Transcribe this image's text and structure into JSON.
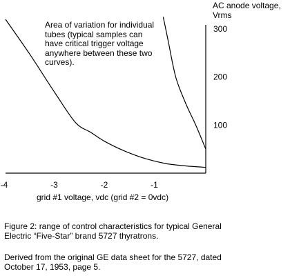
{
  "chart_data": {
    "type": "line",
    "title": "",
    "xlabel": "grid #1 voltage, vdc (grid #2 = 0vdc)",
    "ylabel_lines": [
      "AC anode voltage,",
      "Vrms"
    ],
    "xlim": [
      -4,
      0
    ],
    "ylim": [
      0,
      320
    ],
    "x_ticks": [
      "-4",
      "-3",
      "-2",
      "-1"
    ],
    "x_tick_values": [
      -4,
      -3,
      -2,
      -1
    ],
    "y_ticks": [
      "100",
      "200",
      "300"
    ],
    "y_tick_values": [
      100,
      200,
      300
    ],
    "grid": false,
    "series": [
      {
        "points": [
          [
            -4.0,
            320
          ],
          [
            -3.5,
            245
          ],
          [
            -3.0,
            165
          ],
          [
            -2.6,
            105
          ],
          [
            -2.3,
            85
          ],
          [
            -2.0,
            65
          ],
          [
            -1.6,
            45
          ],
          [
            -1.2,
            30
          ],
          [
            -0.8,
            20
          ],
          [
            -0.4,
            15
          ],
          [
            0.0,
            12
          ]
        ]
      },
      {
        "points": [
          [
            -0.85,
            325
          ],
          [
            -0.75,
            275
          ],
          [
            -0.6,
            200
          ],
          [
            -0.4,
            145
          ],
          [
            -0.2,
            100
          ],
          [
            0.0,
            50
          ]
        ]
      }
    ],
    "annotation_lines": [
      "Area of variation for individual",
      "tubes (typical samples can",
      "have critical trigger voltage",
      "anywhere between these two",
      "curves)."
    ]
  },
  "caption_lines": [
    "Figure 2: range of control characteristics for typical General",
    "Electric “Five-Star” brand 5727 thyratrons."
  ],
  "source_lines": [
    "Derived from the original GE data sheet for the 5727, dated",
    "October 17, 1953, page 5."
  ]
}
